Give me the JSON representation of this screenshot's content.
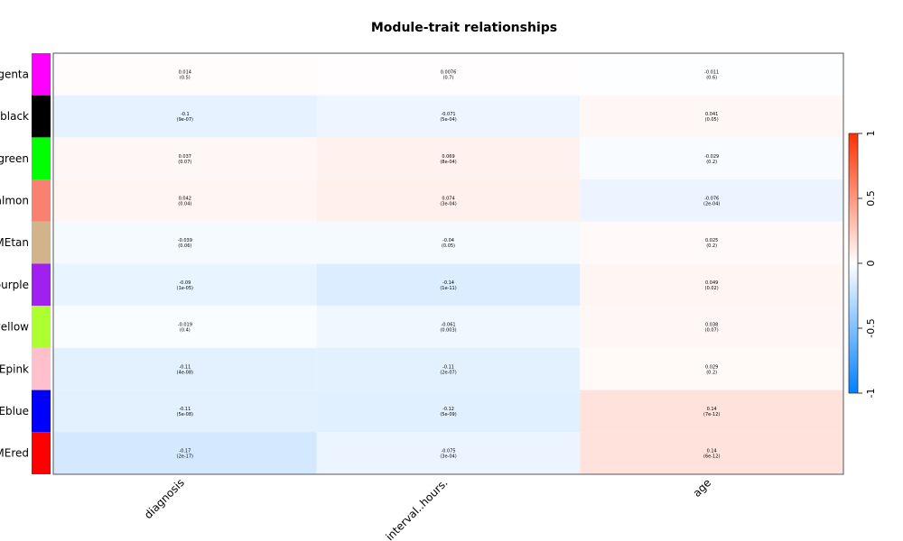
{
  "chart_data": {
    "type": "heatmap",
    "title": "Module-trait relationships",
    "row_labels_visible": [
      "genta",
      "black",
      "green",
      "almon",
      "MEtan",
      "ourple",
      "yellow",
      "Epink",
      "Eblue",
      "MEred"
    ],
    "row_colors": [
      "#ff00ff",
      "#000000",
      "#00ff00",
      "#fa8072",
      "#d2b48c",
      "#a020f0",
      "#adff2f",
      "#ffc0cb",
      "#0000ff",
      "#ff0000"
    ],
    "columns": [
      "diagnosis",
      "interval..hours.",
      "age"
    ],
    "correlations": [
      [
        0.014,
        0.0076,
        -0.011
      ],
      [
        -0.1,
        -0.071,
        0.041
      ],
      [
        0.037,
        0.069,
        -0.029
      ],
      [
        0.042,
        0.074,
        -0.076
      ],
      [
        -0.039,
        -0.04,
        0.025
      ],
      [
        -0.09,
        -0.14,
        0.049
      ],
      [
        -0.019,
        -0.061,
        0.038
      ],
      [
        -0.11,
        -0.11,
        0.029
      ],
      [
        -0.11,
        -0.12,
        0.14
      ],
      [
        -0.17,
        -0.075,
        0.14
      ]
    ],
    "cell_text": [
      [
        [
          "0.014",
          "(0.5)"
        ],
        [
          "0.0076",
          "(0.7)"
        ],
        [
          "-0.011",
          "(0.6)"
        ]
      ],
      [
        [
          "-0.1",
          "(9e-07)"
        ],
        [
          "-0.071",
          "(5e-04)"
        ],
        [
          "0.041",
          "(0.05)"
        ]
      ],
      [
        [
          "0.037",
          "(0.07)"
        ],
        [
          "0.069",
          "(8e-04)"
        ],
        [
          "-0.029",
          "(0.2)"
        ]
      ],
      [
        [
          "0.042",
          "(0.04)"
        ],
        [
          "0.074",
          "(3e-04)"
        ],
        [
          "-0.076",
          "(2e-04)"
        ]
      ],
      [
        [
          "-0.039",
          "(0.06)"
        ],
        [
          "-0.04",
          "(0.05)"
        ],
        [
          "0.025",
          "(0.2)"
        ]
      ],
      [
        [
          "-0.09",
          "(1e-05)"
        ],
        [
          "-0.14",
          "(1e-11)"
        ],
        [
          "0.049",
          "(0.02)"
        ]
      ],
      [
        [
          "-0.019",
          "(0.4)"
        ],
        [
          "-0.061",
          "(0.003)"
        ],
        [
          "0.038",
          "(0.07)"
        ]
      ],
      [
        [
          "-0.11",
          "(4e-08)"
        ],
        [
          "-0.11",
          "(2e-07)"
        ],
        [
          "0.029",
          "(0.2)"
        ]
      ],
      [
        [
          "-0.11",
          "(5e-08)"
        ],
        [
          "-0.12",
          "(5e-09)"
        ],
        [
          "0.14",
          "(7e-12)"
        ]
      ],
      [
        [
          "-0.17",
          "(2e-17)"
        ],
        [
          "-0.075",
          "(3e-04)"
        ],
        [
          "0.14",
          "(6e-12)"
        ]
      ]
    ],
    "colorbar": {
      "range": [
        -1,
        1
      ],
      "ticks": [
        "1",
        "0.5",
        "0",
        "-0.5",
        "-1"
      ],
      "color_low": "#0080ff",
      "color_mid": "#ffffff",
      "color_high": "#ff3000"
    },
    "legend_placement": "right"
  }
}
